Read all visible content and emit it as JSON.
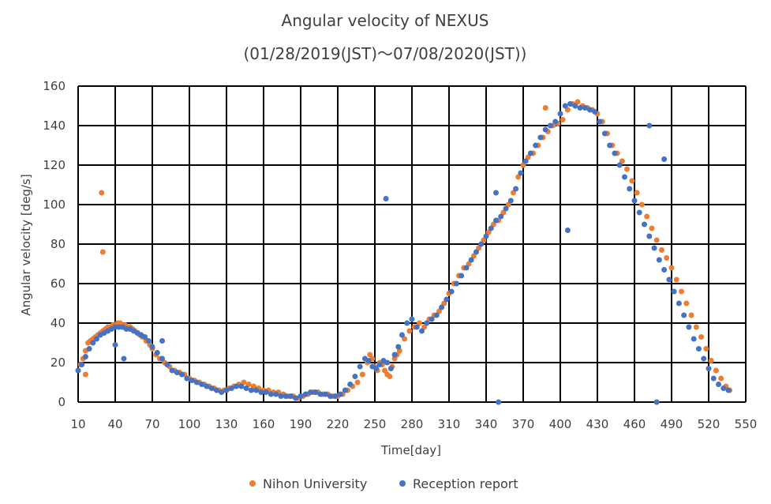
{
  "chart_data": {
    "type": "scatter",
    "title": "Angular velocity of NEXUS",
    "subtitle": "(01/28/2019(JST)～07/08/2020(JST))",
    "xlabel": "Time[day]",
    "ylabel": "Angular velocity [deg/s]",
    "xlim": [
      10,
      550
    ],
    "ylim": [
      0,
      160
    ],
    "xticks": [
      10,
      40,
      70,
      100,
      130,
      160,
      190,
      220,
      250,
      280,
      310,
      340,
      370,
      400,
      430,
      460,
      490,
      520,
      550
    ],
    "yticks": [
      0,
      20,
      40,
      60,
      80,
      100,
      120,
      140,
      160
    ],
    "grid": true,
    "legend": "bottom",
    "series": [
      {
        "name": "Nihon University",
        "color": "#ED7D31",
        "x": [
          10,
          12,
          14,
          16,
          18,
          20,
          22,
          24,
          26,
          28,
          30,
          32,
          34,
          36,
          38,
          40,
          42,
          44,
          46,
          48,
          50,
          52,
          54,
          56,
          58,
          60,
          62,
          65,
          68,
          70,
          73,
          76,
          80,
          84,
          88,
          92,
          96,
          100,
          104,
          108,
          112,
          116,
          120,
          124,
          128,
          132,
          136,
          140,
          144,
          148,
          152,
          156,
          160,
          164,
          168,
          172,
          176,
          180,
          184,
          188,
          192,
          196,
          200,
          204,
          208,
          212,
          216,
          220,
          224,
          228,
          232,
          236,
          240,
          244,
          246,
          248,
          250,
          252,
          254,
          256,
          258,
          260,
          262,
          264,
          266,
          268,
          270,
          274,
          278,
          282,
          286,
          290,
          294,
          298,
          302,
          306,
          310,
          314,
          318,
          322,
          326,
          330,
          334,
          338,
          342,
          346,
          350,
          354,
          358,
          362,
          366,
          370,
          374,
          378,
          382,
          386,
          390,
          394,
          398,
          402,
          406,
          410,
          414,
          418,
          422,
          426,
          430,
          434,
          438,
          442,
          446,
          450,
          454,
          458,
          462,
          466,
          470,
          474,
          478,
          482,
          486,
          490,
          494,
          498,
          502,
          506,
          510,
          514,
          518,
          522,
          526,
          530,
          534,
          537,
          29,
          30,
          16,
          388
        ],
        "y": [
          16,
          19,
          22,
          26,
          30,
          31,
          32,
          33,
          34,
          35,
          36,
          37,
          38,
          38,
          39,
          39,
          40,
          40,
          39,
          39,
          38,
          38,
          37,
          36,
          35,
          34,
          33,
          31,
          29,
          27,
          24,
          22,
          20,
          18,
          16,
          15,
          14,
          12,
          11,
          10,
          9,
          8,
          7,
          6,
          6,
          7,
          8,
          9,
          10,
          9,
          8,
          7,
          6,
          6,
          5,
          5,
          4,
          3,
          3,
          2,
          3,
          4,
          5,
          5,
          4,
          4,
          3,
          3,
          4,
          6,
          8,
          10,
          14,
          20,
          24,
          22,
          18,
          16,
          20,
          19,
          16,
          14,
          13,
          18,
          22,
          24,
          26,
          32,
          36,
          38,
          40,
          38,
          42,
          44,
          46,
          50,
          55,
          60,
          64,
          68,
          70,
          74,
          78,
          82,
          86,
          90,
          92,
          96,
          100,
          106,
          114,
          120,
          124,
          126,
          130,
          134,
          137,
          140,
          141,
          143,
          148,
          151,
          152,
          150,
          149,
          148,
          146,
          142,
          136,
          130,
          126,
          122,
          118,
          112,
          106,
          100,
          94,
          88,
          82,
          77,
          73,
          68,
          62,
          56,
          50,
          44,
          38,
          33,
          27,
          21,
          16,
          12,
          8,
          6,
          106,
          76,
          14,
          149
        ]
      },
      {
        "name": "Reception report",
        "color": "#4472C4",
        "x": [
          10,
          13,
          16,
          19,
          22,
          25,
          28,
          31,
          34,
          37,
          40,
          43,
          46,
          49,
          52,
          55,
          58,
          61,
          64,
          67,
          70,
          74,
          78,
          82,
          86,
          90,
          94,
          98,
          102,
          106,
          110,
          114,
          118,
          122,
          126,
          130,
          134,
          138,
          142,
          146,
          150,
          154,
          158,
          162,
          166,
          170,
          174,
          178,
          182,
          186,
          190,
          194,
          198,
          202,
          206,
          210,
          214,
          218,
          222,
          226,
          230,
          234,
          238,
          242,
          245,
          248,
          251,
          254,
          257,
          260,
          263,
          266,
          269,
          272,
          276,
          280,
          284,
          288,
          292,
          296,
          300,
          304,
          308,
          312,
          316,
          320,
          324,
          328,
          332,
          336,
          340,
          344,
          348,
          352,
          356,
          360,
          364,
          368,
          372,
          376,
          380,
          384,
          388,
          392,
          396,
          400,
          404,
          408,
          412,
          416,
          420,
          424,
          428,
          432,
          436,
          440,
          444,
          448,
          452,
          456,
          460,
          464,
          468,
          472,
          476,
          480,
          484,
          488,
          492,
          496,
          500,
          504,
          508,
          512,
          516,
          520,
          524,
          528,
          532,
          536,
          40,
          47,
          78,
          259,
          348,
          350,
          406,
          472,
          478,
          484
        ],
        "y": [
          16,
          19,
          23,
          27,
          30,
          32,
          34,
          35,
          36,
          37,
          38,
          38,
          38,
          37,
          37,
          36,
          35,
          34,
          33,
          31,
          28,
          25,
          22,
          19,
          16,
          15,
          14,
          12,
          11,
          10,
          9,
          8,
          7,
          6,
          5,
          6,
          7,
          8,
          8,
          7,
          6,
          6,
          5,
          5,
          4,
          4,
          3,
          3,
          3,
          2,
          3,
          4,
          5,
          5,
          4,
          4,
          3,
          3,
          4,
          6,
          9,
          13,
          18,
          22,
          21,
          18,
          17,
          19,
          21,
          20,
          17,
          24,
          28,
          34,
          40,
          42,
          38,
          36,
          40,
          42,
          44,
          48,
          52,
          56,
          60,
          64,
          68,
          72,
          76,
          80,
          84,
          88,
          92,
          94,
          98,
          102,
          108,
          116,
          122,
          126,
          130,
          134,
          138,
          140,
          142,
          146,
          150,
          151,
          150,
          149,
          149,
          148,
          147,
          142,
          136,
          130,
          126,
          120,
          114,
          108,
          102,
          96,
          90,
          84,
          78,
          72,
          67,
          62,
          56,
          50,
          44,
          38,
          32,
          27,
          22,
          17,
          12,
          9,
          7,
          6,
          29,
          22,
          31,
          103,
          106,
          0,
          87,
          140,
          0,
          123
        ]
      }
    ]
  }
}
